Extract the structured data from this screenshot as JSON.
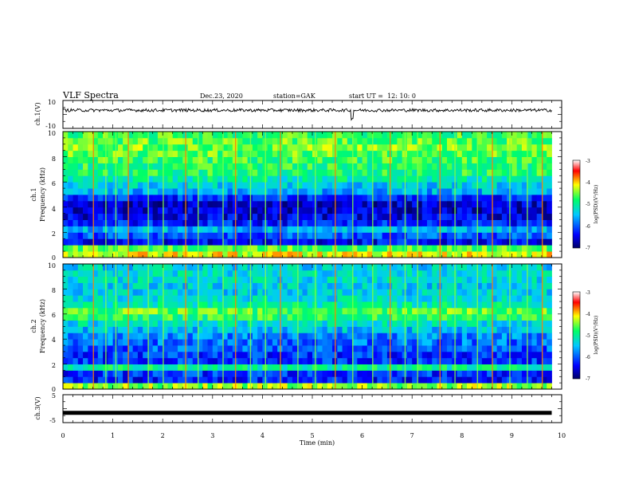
{
  "header": {
    "title": "VLF Spectra",
    "date": "Dec.23, 2020",
    "station": "station=GAK",
    "start": "start UT =  12: 10: 0"
  },
  "panels": {
    "ch1_wave": {
      "ylabel": "ch.1(V)",
      "ticks": [
        "10",
        "-10"
      ]
    },
    "ch1_spec": {
      "ylabel_line1": "ch.1",
      "ylabel_line2": "Frequency (kHz)",
      "ticks": [
        "10",
        "8",
        "6",
        "4",
        "2",
        "0"
      ]
    },
    "ch2_spec": {
      "ylabel_line1": "ch.2",
      "ylabel_line2": "Frequency (kHz)",
      "ticks": [
        "10",
        "8",
        "6",
        "4",
        "2",
        "0"
      ]
    },
    "ch3_wave": {
      "ylabel": "ch.3(V)",
      "ticks": [
        "5",
        "-5"
      ]
    }
  },
  "xaxis": {
    "label": "Time (min)",
    "ticks": [
      "0",
      "1",
      "2",
      "3",
      "4",
      "5",
      "6",
      "7",
      "8",
      "9",
      "10"
    ]
  },
  "colorbar": {
    "label": "log(PSD)(V²/Hz)",
    "ticks": [
      "-3",
      "-4",
      "-5",
      "-6",
      "-7"
    ],
    "colors": [
      "#000066",
      "#0000ff",
      "#00c8ff",
      "#00ff66",
      "#ffff00",
      "#ff0000",
      "#ffffff"
    ]
  },
  "chart_data": [
    {
      "type": "line",
      "panel": "ch.1(V)",
      "ylabel": "ch.1(V)",
      "xlabel": "Time (min)",
      "xlim": [
        0,
        10
      ],
      "ylim": [
        -10,
        10
      ],
      "description": "ch.1 waveform, noisy around ~3 V with brief negative spike near 5.8 min",
      "x": [
        0,
        1,
        2,
        3,
        4,
        5,
        5.8,
        6,
        7,
        8,
        9,
        9.8
      ],
      "y": [
        3,
        3,
        3,
        3,
        3,
        3,
        -3,
        3,
        3,
        3,
        3,
        3
      ]
    },
    {
      "type": "heatmap",
      "panel": "ch.1",
      "ylabel": "Frequency (kHz)",
      "xlabel": "Time (min)",
      "xlim": [
        0,
        10
      ],
      "ylim": [
        0,
        10
      ],
      "zlabel": "log(PSD)(V²/Hz)",
      "zlim": [
        -7,
        -3
      ],
      "freq_kHz": [
        0.25,
        0.75,
        1.25,
        1.75,
        2.25,
        2.75,
        3.25,
        3.75,
        4.25,
        4.75,
        5.25,
        5.75,
        6.25,
        6.75,
        7.25,
        7.75,
        8.25,
        8.75,
        9.25,
        9.75
      ],
      "typical_log_psd": [
        -4.2,
        -4.6,
        -6.4,
        -6.0,
        -5.6,
        -6.3,
        -6.5,
        -6.6,
        -6.6,
        -6.2,
        -5.6,
        -5.4,
        -5.1,
        -4.8,
        -4.8,
        -4.7,
        -4.6,
        -4.5,
        -4.6,
        -4.7
      ],
      "impulsive_events_min": [
        0.6,
        0.85,
        1.05,
        1.3,
        1.7,
        2.0,
        2.45,
        2.7,
        3.2,
        3.45,
        3.75,
        4.05,
        4.35,
        4.7,
        5.05,
        5.45,
        5.8,
        6.2,
        6.55,
        6.85,
        7.1,
        7.55,
        7.85,
        8.3,
        8.6,
        8.95,
        9.3,
        9.6
      ]
    },
    {
      "type": "heatmap",
      "panel": "ch.2",
      "ylabel": "Frequency (kHz)",
      "xlabel": "Time (min)",
      "xlim": [
        0,
        10
      ],
      "ylim": [
        0,
        10
      ],
      "zlabel": "log(PSD)(V²/Hz)",
      "zlim": [
        -7,
        -3
      ],
      "freq_kHz": [
        0.25,
        0.75,
        1.25,
        1.75,
        2.25,
        2.75,
        3.25,
        3.75,
        4.25,
        4.75,
        5.25,
        5.75,
        6.25,
        6.75,
        7.25,
        7.75,
        8.25,
        8.75,
        9.25,
        9.75
      ],
      "typical_log_psd": [
        -4.4,
        -6.3,
        -6.2,
        -5.0,
        -6.2,
        -6.2,
        -6.0,
        -5.9,
        -5.8,
        -5.5,
        -5.3,
        -4.8,
        -4.6,
        -5.1,
        -5.3,
        -5.4,
        -5.4,
        -5.3,
        -5.3,
        -5.4
      ],
      "impulsive_events_min": [
        0.6,
        0.85,
        1.05,
        1.3,
        1.7,
        2.0,
        2.45,
        2.7,
        3.2,
        3.45,
        3.75,
        4.05,
        4.35,
        4.7,
        5.05,
        5.45,
        5.8,
        6.2,
        6.55,
        6.85,
        7.1,
        7.55,
        7.85,
        8.3,
        8.6,
        8.95,
        9.3,
        9.6
      ]
    },
    {
      "type": "line",
      "panel": "ch.3(V)",
      "ylabel": "ch.3(V)",
      "xlabel": "Time (min)",
      "xlim": [
        0,
        10
      ],
      "ylim": [
        -5,
        5
      ],
      "description": "ch.3 flat thick line at about -1.5 V",
      "x": [
        0,
        9.8
      ],
      "y": [
        -1.5,
        -1.5
      ]
    }
  ]
}
